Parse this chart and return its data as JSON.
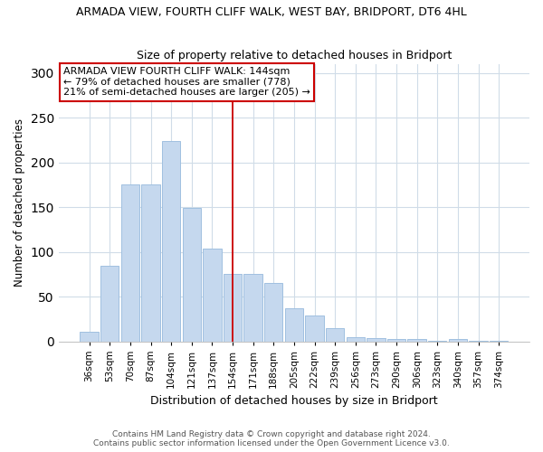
{
  "title": "ARMADA VIEW, FOURTH CLIFF WALK, WEST BAY, BRIDPORT, DT6 4HL",
  "subtitle": "Size of property relative to detached houses in Bridport",
  "xlabel": "Distribution of detached houses by size in Bridport",
  "ylabel": "Number of detached properties",
  "categories": [
    "36sqm",
    "53sqm",
    "70sqm",
    "87sqm",
    "104sqm",
    "121sqm",
    "137sqm",
    "154sqm",
    "171sqm",
    "188sqm",
    "205sqm",
    "222sqm",
    "239sqm",
    "256sqm",
    "273sqm",
    "290sqm",
    "306sqm",
    "323sqm",
    "340sqm",
    "357sqm",
    "374sqm"
  ],
  "values": [
    11,
    84,
    176,
    176,
    224,
    149,
    104,
    75,
    75,
    65,
    37,
    29,
    15,
    5,
    4,
    3,
    3,
    1,
    3,
    1,
    1
  ],
  "bar_color": "#c5d8ee",
  "bar_edge_color": "#a0c0e0",
  "vline_x": 7.0,
  "vline_color": "#cc0000",
  "annotation_title": "ARMADA VIEW FOURTH CLIFF WALK: 144sqm",
  "annotation_line1": "← 79% of detached houses are smaller (778)",
  "annotation_line2": "21% of semi-detached houses are larger (205) →",
  "annotation_box_color": "#cc0000",
  "ylim": [
    0,
    310
  ],
  "yticks": [
    0,
    50,
    100,
    150,
    200,
    250,
    300
  ],
  "footer1": "Contains HM Land Registry data © Crown copyright and database right 2024.",
  "footer2": "Contains public sector information licensed under the Open Government Licence v3.0.",
  "bg_color": "#ffffff",
  "plot_bg_color": "#ffffff",
  "grid_color": "#d0dce8"
}
